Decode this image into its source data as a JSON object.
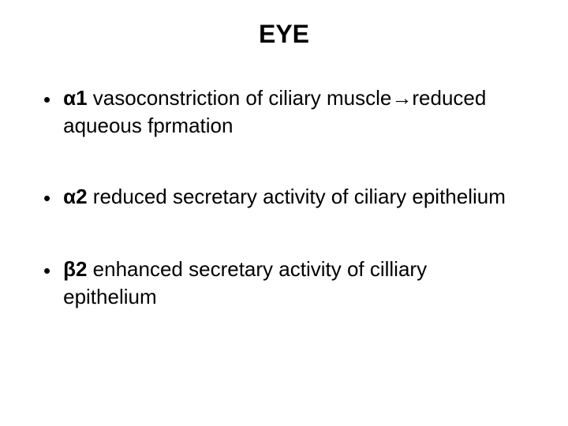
{
  "slide": {
    "title": "EYE",
    "bullets": [
      {
        "symbol": "α1",
        "text_before_arrow": " vasoconstriction of ciliary muscle",
        "arrow": "→",
        "text_after_arrow": "reduced aqueous fprmation"
      },
      {
        "symbol": "α2",
        "text_before_arrow": "  reduced secretary activity of ciliary epithelium",
        "arrow": "",
        "text_after_arrow": ""
      },
      {
        "symbol": "β2",
        "text_before_arrow": " enhanced  secretary activity of cilliary epithelium",
        "arrow": "",
        "text_after_arrow": ""
      }
    ],
    "colors": {
      "background": "#ffffff",
      "text": "#000000"
    },
    "typography": {
      "title_fontsize": 32,
      "body_fontsize": 26,
      "font_family": "Arial"
    }
  }
}
